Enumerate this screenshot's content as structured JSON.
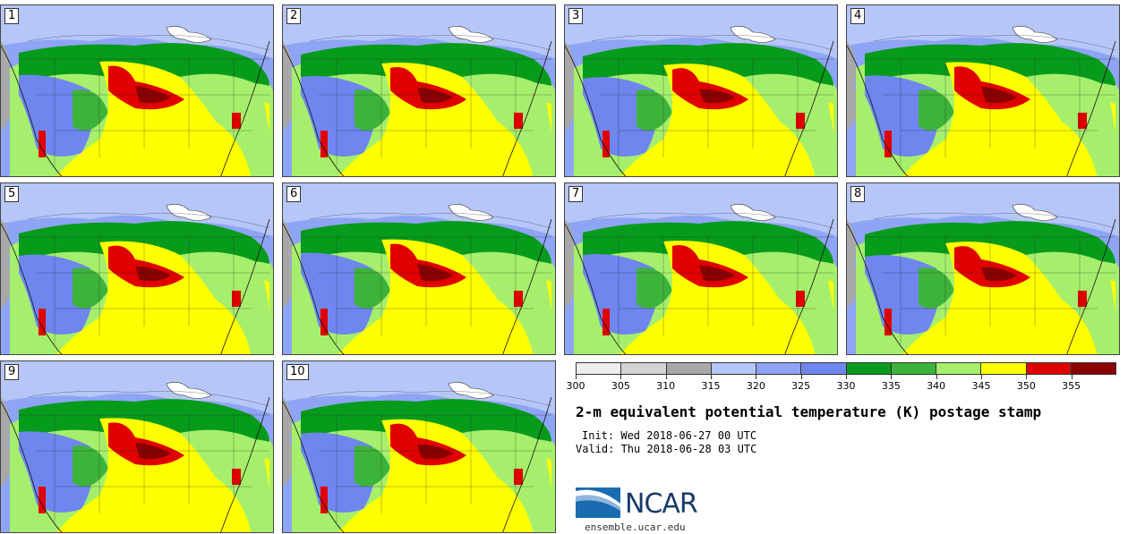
{
  "panels": [
    {
      "label": "1"
    },
    {
      "label": "2"
    },
    {
      "label": "3"
    },
    {
      "label": "4"
    },
    {
      "label": "5"
    },
    {
      "label": "6"
    },
    {
      "label": "7"
    },
    {
      "label": "8"
    },
    {
      "label": "9"
    },
    {
      "label": "10"
    }
  ],
  "colorbar": {
    "colors": [
      "#eeeeee",
      "#d4d4d4",
      "#a8a8a8",
      "#b7c6f8",
      "#8ea4f4",
      "#6f86ef",
      "#079b1c",
      "#3cb33b",
      "#a6ef6c",
      "#ffff00",
      "#e00000",
      "#8a0000"
    ],
    "tick_labels": [
      "300",
      "305",
      "310",
      "315",
      "320",
      "325",
      "330",
      "335",
      "340",
      "345",
      "350",
      "355"
    ]
  },
  "title": "2-m equivalent potential temperature (K) postage stamp",
  "init": "Init: Wed 2018-06-27 00 UTC",
  "valid": "Valid: Thu 2018-06-28 03 UTC",
  "logo": {
    "text": "NCAR",
    "color": "#1a6bb0"
  },
  "site": "ensemble.ucar.edu"
}
